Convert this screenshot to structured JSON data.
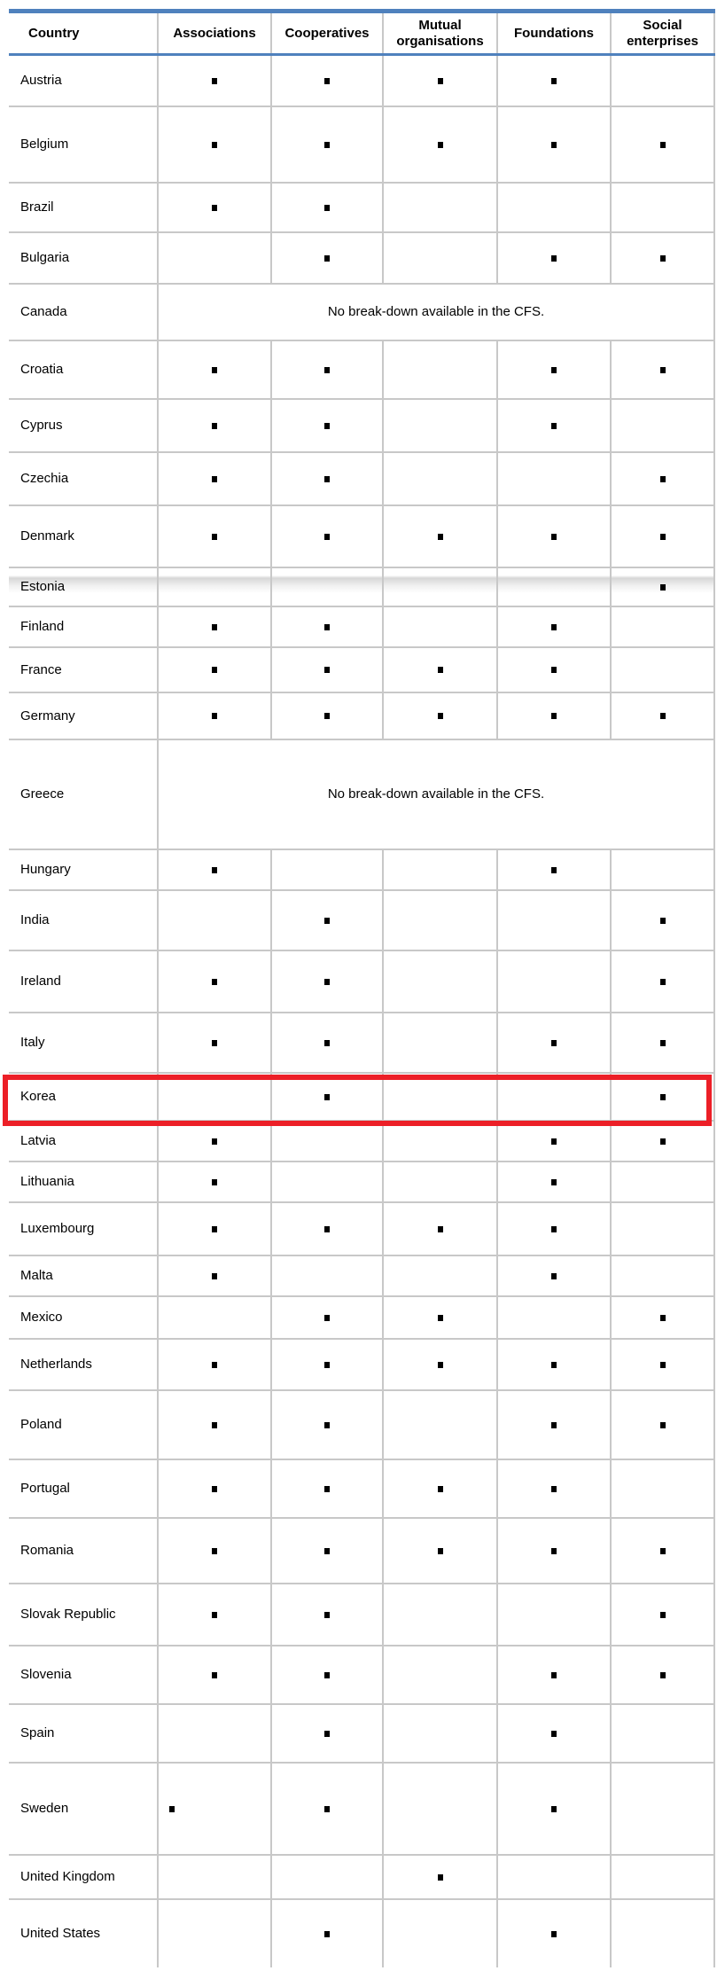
{
  "colors": {
    "header_rule": "#4f81bd",
    "grid_line": "#c8c8c8",
    "highlight_box": "#ec1f27",
    "marker": "#000000"
  },
  "table": {
    "columns": [
      "Country",
      "Associations",
      "Cooperatives",
      "Mutual organisations",
      "Foundations",
      "Social enterprises"
    ],
    "marker_glyph": "filled-square",
    "rows": [
      {
        "country": "Austria",
        "cells": [
          1,
          1,
          1,
          1,
          0
        ]
      },
      {
        "country": "Belgium",
        "cells": [
          1,
          1,
          1,
          1,
          1
        ]
      },
      {
        "country": "Brazil",
        "cells": [
          1,
          1,
          0,
          0,
          0
        ]
      },
      {
        "country": "Bulgaria",
        "cells": [
          0,
          1,
          0,
          1,
          1
        ]
      },
      {
        "country": "Canada",
        "note": "No break-down available in the CFS."
      },
      {
        "country": "Croatia",
        "cells": [
          1,
          1,
          0,
          1,
          1
        ]
      },
      {
        "country": "Cyprus",
        "cells": [
          1,
          1,
          0,
          1,
          0
        ]
      },
      {
        "country": "Czechia",
        "cells": [
          1,
          1,
          0,
          0,
          1
        ]
      },
      {
        "country": "Denmark",
        "cells": [
          1,
          1,
          1,
          1,
          1
        ]
      },
      {
        "country": "Estonia",
        "cells": [
          0,
          0,
          0,
          0,
          1
        ],
        "page_break_shadow": true
      },
      {
        "country": "Finland",
        "cells": [
          1,
          1,
          0,
          1,
          0
        ]
      },
      {
        "country": "France",
        "cells": [
          1,
          1,
          1,
          1,
          0
        ]
      },
      {
        "country": "Germany",
        "cells": [
          1,
          1,
          1,
          1,
          1
        ]
      },
      {
        "country": "Greece",
        "note": "No break-down available in the CFS."
      },
      {
        "country": "Hungary",
        "cells": [
          1,
          0,
          0,
          1,
          0
        ]
      },
      {
        "country": "India",
        "cells": [
          0,
          1,
          0,
          0,
          1
        ]
      },
      {
        "country": "Ireland",
        "cells": [
          1,
          1,
          0,
          0,
          1
        ]
      },
      {
        "country": "Italy",
        "cells": [
          1,
          1,
          0,
          1,
          1
        ]
      },
      {
        "country": "Korea",
        "cells": [
          0,
          1,
          0,
          0,
          1
        ],
        "highlighted": true
      },
      {
        "country": "Latvia",
        "cells": [
          1,
          0,
          0,
          1,
          1
        ]
      },
      {
        "country": "Lithuania",
        "cells": [
          1,
          0,
          0,
          1,
          0
        ]
      },
      {
        "country": "Luxembourg",
        "cells": [
          1,
          1,
          1,
          1,
          0
        ]
      },
      {
        "country": "Malta",
        "cells": [
          1,
          0,
          0,
          1,
          0
        ]
      },
      {
        "country": "Mexico",
        "cells": [
          0,
          1,
          1,
          0,
          1
        ]
      },
      {
        "country": "Netherlands",
        "cells": [
          1,
          1,
          1,
          1,
          1
        ]
      },
      {
        "country": "Poland",
        "cells": [
          1,
          1,
          0,
          1,
          1
        ]
      },
      {
        "country": "Portugal",
        "cells": [
          1,
          1,
          1,
          1,
          0
        ]
      },
      {
        "country": "Romania",
        "cells": [
          1,
          1,
          1,
          1,
          1
        ]
      },
      {
        "country": "Slovak Republic",
        "cells": [
          1,
          1,
          0,
          0,
          1
        ]
      },
      {
        "country": "Slovenia",
        "cells": [
          1,
          1,
          0,
          1,
          1
        ]
      },
      {
        "country": "Spain",
        "cells": [
          0,
          1,
          0,
          1,
          0
        ]
      },
      {
        "country": "Sweden",
        "cells": [
          1,
          1,
          0,
          1,
          0
        ],
        "associations_marker_left_aligned": true
      },
      {
        "country": "United Kingdom",
        "cells": [
          0,
          0,
          1,
          0,
          0
        ]
      },
      {
        "country": "United States",
        "cells": [
          0,
          1,
          0,
          1,
          0
        ]
      }
    ]
  }
}
